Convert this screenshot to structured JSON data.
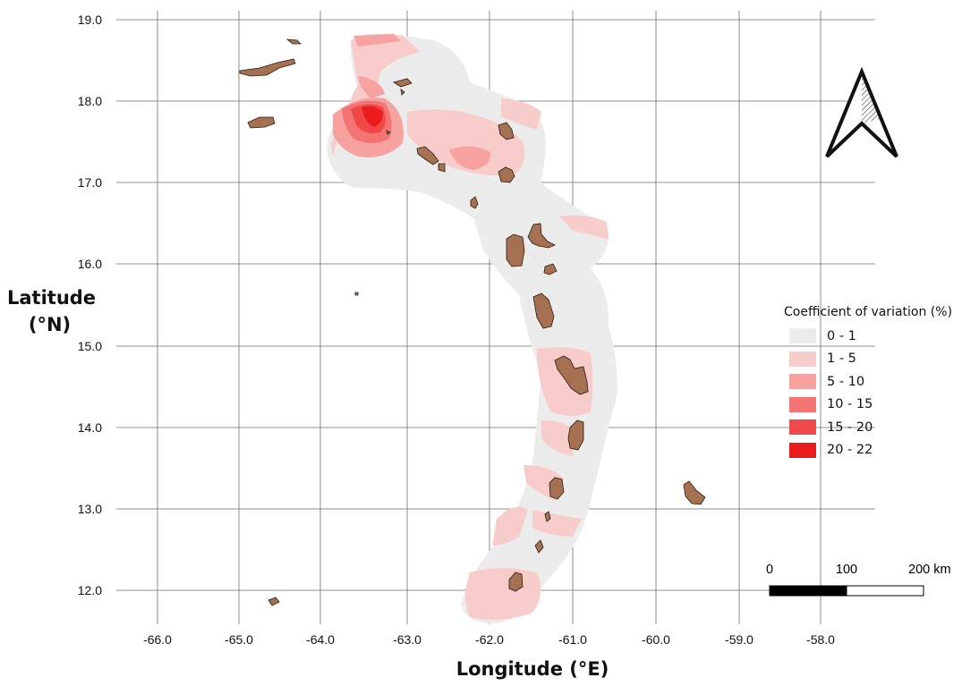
{
  "map": {
    "y_title_line1": "Latitude",
    "y_title_line2": "(°N)",
    "x_title": "Longitude (°E)",
    "lat_ticks": [
      "19.0",
      "18.0",
      "17.0",
      "16.0",
      "15.0",
      "14.0",
      "13.0",
      "12.0"
    ],
    "lon_ticks": [
      "-66.0",
      "-65.0",
      "-64.0",
      "-63.0",
      "-62.0",
      "-61.0",
      "-60.0",
      "-59.0",
      "-58.0"
    ],
    "legend": {
      "title": "Coefficient of variation (%)",
      "classes": [
        {
          "label": "0 - 1",
          "color": "#ececec"
        },
        {
          "label": "1 - 5",
          "color": "#f9cccc"
        },
        {
          "label": "5 - 10",
          "color": "#f7a1a1"
        },
        {
          "label": "10 - 15",
          "color": "#f47474"
        },
        {
          "label": "15 - 20",
          "color": "#f04848"
        },
        {
          "label": "20 - 22",
          "color": "#ec1c1c"
        }
      ]
    },
    "scale_bar": {
      "labels": [
        "0",
        "100",
        "200 km"
      ]
    },
    "colors": {
      "land": "#a57152",
      "land_outline": "#2a1a10",
      "grid": "#6e6e6e"
    }
  }
}
